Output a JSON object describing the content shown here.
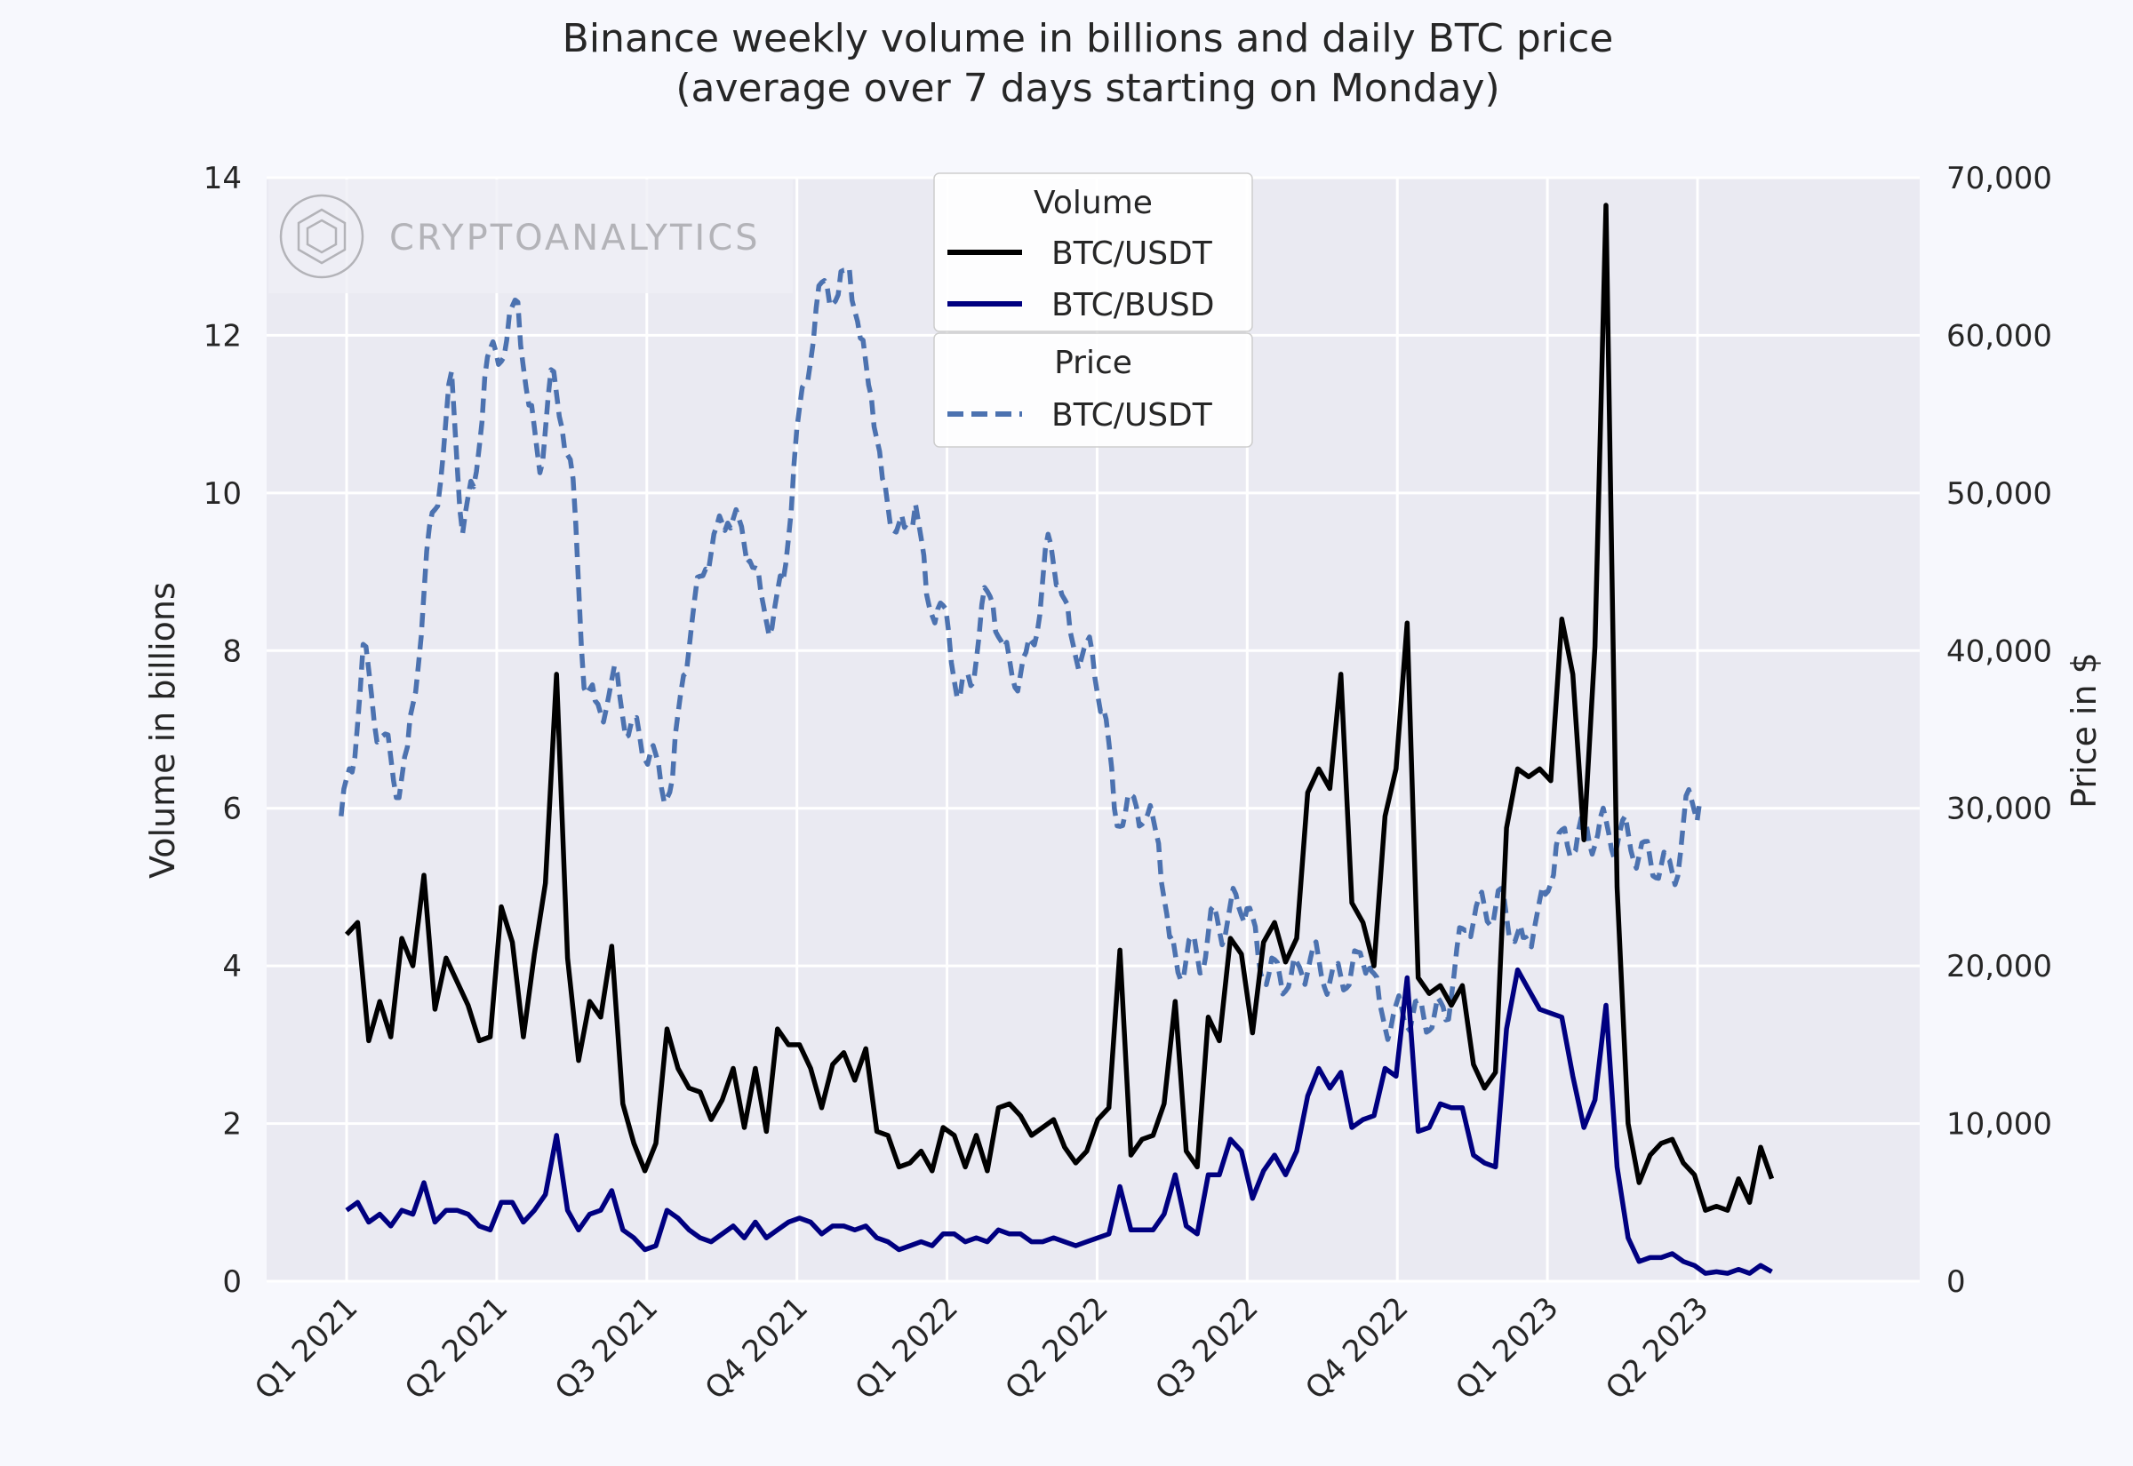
{
  "chart_data": {
    "type": "line",
    "title_line1": "Binance weekly volume in billions and daily BTC price",
    "title_line2": "(average over 7 days starting on Monday)",
    "ylabel_left": "Volume in billions",
    "ylabel_right": "Price in $",
    "ylim_left": [
      0,
      14
    ],
    "ylim_right": [
      0,
      70000
    ],
    "yticks_left": [
      "0",
      "2",
      "4",
      "6",
      "8",
      "10",
      "12",
      "14"
    ],
    "yticks_right": [
      "0",
      "10,000",
      "20,000",
      "30,000",
      "40,000",
      "50,000",
      "60,000",
      "70,000"
    ],
    "xticks": [
      "Q1 2021",
      "Q2 2021",
      "Q3 2021",
      "Q4 2021",
      "Q1 2022",
      "Q2 2022",
      "Q3 2022",
      "Q4 2022",
      "Q1 2023",
      "Q2 2023"
    ],
    "watermark": "CRYPTOANALYTICS",
    "legend_volume_title": "Volume",
    "legend_price_title": "Price",
    "colors": {
      "usdt": "#000000",
      "busd": "#000080",
      "price": "#4c72b0",
      "grid": "#ffffff",
      "plot_bg": "#eaeaf2"
    },
    "series": [
      {
        "name": "BTC/USDT",
        "group": "Volume",
        "axis": "left",
        "week_offset": 0,
        "values": [
          4.4,
          4.55,
          3.05,
          3.55,
          3.1,
          4.35,
          4.0,
          5.15,
          3.45,
          4.1,
          3.8,
          3.5,
          3.05,
          3.1,
          4.75,
          4.3,
          3.1,
          4.15,
          5.05,
          7.7,
          4.1,
          2.8,
          3.55,
          3.35,
          4.25,
          2.25,
          1.75,
          1.4,
          1.75,
          3.2,
          2.7,
          2.45,
          2.4,
          2.05,
          2.3,
          2.7,
          1.95,
          2.7,
          1.9,
          3.2,
          3.0,
          3.0,
          2.7,
          2.2,
          2.75,
          2.9,
          2.55,
          2.95,
          1.9,
          1.85,
          1.45,
          1.5,
          1.65,
          1.4,
          1.95,
          1.85,
          1.45,
          1.85,
          1.4,
          2.2,
          2.25,
          2.1,
          1.85,
          1.95,
          2.05,
          1.7,
          1.5,
          1.65,
          2.05,
          2.2,
          4.2,
          1.6,
          1.8,
          1.85,
          2.25,
          3.55,
          1.65,
          1.45,
          3.35,
          3.05,
          4.35,
          4.15,
          3.15,
          4.3,
          4.55,
          4.05,
          4.35,
          6.2,
          6.5,
          6.25,
          7.7,
          4.8,
          4.55,
          4.0,
          5.9,
          6.5,
          8.35,
          3.85,
          3.65,
          3.75,
          3.5,
          3.75,
          2.75,
          2.45,
          2.65,
          5.75,
          6.5,
          6.4,
          6.5,
          6.35,
          8.4,
          7.7,
          5.6,
          8.05,
          13.65,
          5.0,
          2.0,
          1.25,
          1.6,
          1.75,
          1.8,
          1.5,
          1.35,
          0.9,
          0.95,
          0.9,
          1.3,
          1.0,
          1.7,
          1.3
        ]
      },
      {
        "name": "BTC/BUSD",
        "group": "Volume",
        "axis": "left",
        "week_offset": 0,
        "values": [
          0.9,
          1.0,
          0.75,
          0.85,
          0.7,
          0.9,
          0.85,
          1.25,
          0.75,
          0.9,
          0.9,
          0.85,
          0.7,
          0.65,
          1.0,
          1.0,
          0.75,
          0.9,
          1.1,
          1.85,
          0.9,
          0.65,
          0.85,
          0.9,
          1.15,
          0.65,
          0.55,
          0.4,
          0.45,
          0.9,
          0.8,
          0.65,
          0.55,
          0.5,
          0.6,
          0.7,
          0.55,
          0.75,
          0.55,
          0.65,
          0.75,
          0.8,
          0.75,
          0.6,
          0.7,
          0.7,
          0.65,
          0.7,
          0.55,
          0.5,
          0.4,
          0.45,
          0.5,
          0.45,
          0.6,
          0.6,
          0.5,
          0.55,
          0.5,
          0.65,
          0.6,
          0.6,
          0.5,
          0.5,
          0.55,
          0.5,
          0.45,
          0.5,
          0.55,
          0.6,
          1.2,
          0.65,
          0.65,
          0.65,
          0.85,
          1.35,
          0.7,
          0.6,
          1.35,
          1.35,
          1.8,
          1.65,
          1.05,
          1.4,
          1.6,
          1.35,
          1.65,
          2.35,
          2.7,
          2.45,
          2.65,
          1.95,
          2.05,
          2.1,
          2.7,
          2.6,
          3.85,
          1.9,
          1.95,
          2.25,
          2.2,
          2.2,
          1.6,
          1.5,
          1.45,
          3.2,
          3.95,
          3.7,
          3.45,
          3.4,
          3.35,
          2.6,
          1.95,
          2.3,
          3.5,
          1.45,
          0.55,
          0.25,
          0.3,
          0.3,
          0.35,
          0.25,
          0.2,
          0.1,
          0.12,
          0.1,
          0.15,
          0.1,
          0.2,
          0.12
        ]
      },
      {
        "name": "BTC/USDT",
        "group": "Price",
        "axis": "right",
        "week_offset": -0.5,
        "values": [
          29500,
          32500,
          40000,
          36000,
          34000,
          31500,
          33000,
          40000,
          47000,
          51500,
          57000,
          48000,
          50000,
          57500,
          59000,
          59500,
          62500,
          55000,
          52000,
          57000,
          55000,
          50000,
          38500,
          36000,
          37000,
          38000,
          35000,
          34500,
          33500,
          31500,
          31500,
          39000,
          42500,
          46000,
          47000,
          49000,
          47500,
          46500,
          43000,
          42000,
          44000,
          52000,
          57000,
          61500,
          63500,
          62000,
          65000,
          59000,
          57000,
          50000,
          48500,
          47000,
          50000,
          43000,
          43000,
          41000,
          37000,
          38000,
          42500,
          43500,
          39500,
          38500,
          39000,
          42000,
          46500,
          45000,
          40500,
          40000,
          39500,
          36500,
          30000,
          29500,
          30500,
          29000,
          28500,
          21000,
          20000,
          21000,
          20500,
          23000,
          22500,
          24000,
          24000,
          20500,
          19500,
          19500,
          19000,
          20000,
          20500,
          19500,
          19000,
          19500,
          20000,
          21000,
          17000,
          16500,
          17000,
          17000,
          16800,
          16800,
          17000,
          20500,
          23000,
          23500,
          23500,
          24000,
          22500,
          21000,
          23000,
          24000,
          28000,
          27500,
          28500,
          28000,
          29000,
          28000,
          28500,
          27500,
          27000,
          26500,
          26000,
          26500,
          30500,
          30500
        ]
      }
    ]
  }
}
